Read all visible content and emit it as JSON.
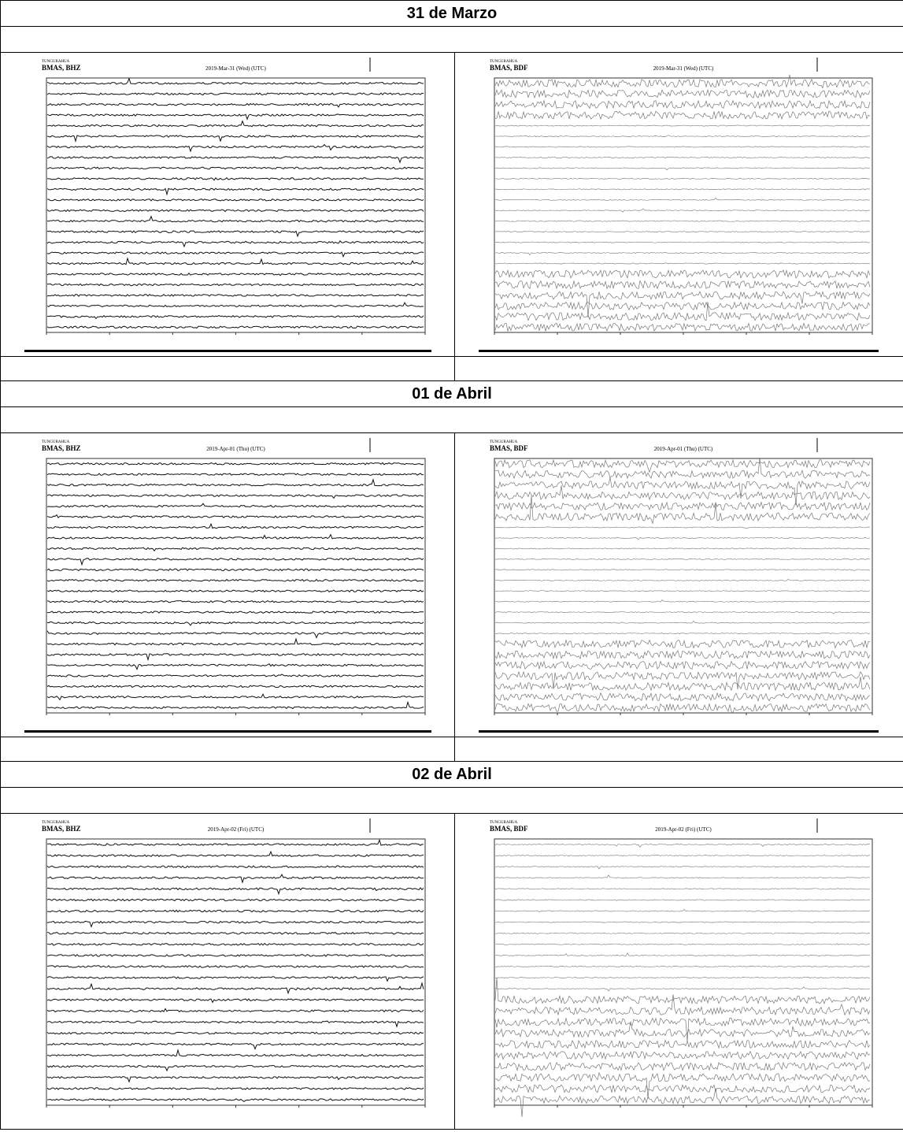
{
  "sections": [
    {
      "title": "31 de Marzo",
      "panels": [
        {
          "network": "TUNGURAHUA",
          "station": "BMAS, BHZ",
          "date": "2019-Mar-31 (Wed) (UTC)"
        },
        {
          "network": "TUNGURAHUA",
          "station": "BMAS, BDF",
          "date": "2019-Mar-31 (Wed) (UTC)"
        }
      ]
    },
    {
      "title": "01 de Abril",
      "panels": [
        {
          "network": "TUNGURAHUA",
          "station": "BMAS, BHZ",
          "date": "2019-Apr-01 (Thu) (UTC)"
        },
        {
          "network": "TUNGURAHUA",
          "station": "BMAS, BDF",
          "date": "2019-Apr-01 (Thu) (UTC)"
        }
      ]
    },
    {
      "title": "02 de Abril",
      "panels": [
        {
          "network": "TUNGURAHUA",
          "station": "BMAS, BHZ",
          "date": "2019-Apr-02 (Fri) (UTC)"
        },
        {
          "network": "TUNGURAHUA",
          "station": "BMAS, BDF",
          "date": "2019-Apr-02 (Fri) (UTC)"
        }
      ]
    }
  ]
}
